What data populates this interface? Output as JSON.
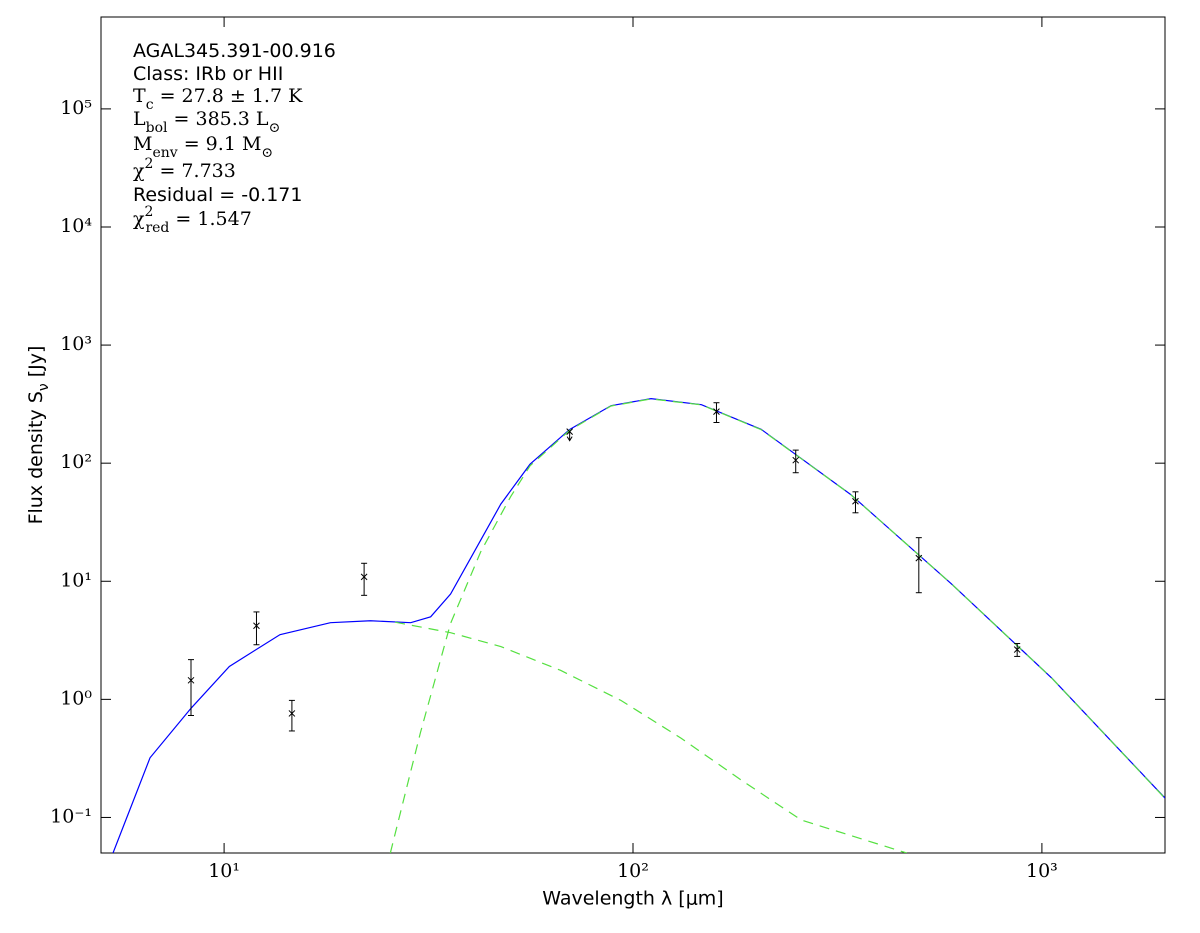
{
  "chart_data": {
    "type": "scatter",
    "xlabel": "Wavelength λ [μm]",
    "ylabel": [
      "Flux density S",
      {
        "sub": "ν"
      },
      " [Jy]"
    ],
    "xscale": "log",
    "yscale": "log",
    "xlim": [
      5,
      2000
    ],
    "ylim": [
      0.05,
      600000
    ],
    "xticks": [
      {
        "value": 10,
        "label": "10¹"
      },
      {
        "value": 100,
        "label": "10²"
      },
      {
        "value": 1000,
        "label": "10³"
      }
    ],
    "yticks": [
      {
        "value": 0.1,
        "label": "10⁻¹"
      },
      {
        "value": 1,
        "label": "10⁰"
      },
      {
        "value": 10,
        "label": "10¹"
      },
      {
        "value": 100,
        "label": "10²"
      },
      {
        "value": 1000,
        "label": "10³"
      },
      {
        "value": 10000,
        "label": "10⁴"
      },
      {
        "value": 100000,
        "label": "10⁵"
      }
    ],
    "annotations": [
      [
        "AGAL345.391-00.916"
      ],
      [
        "Class: IRb or HII"
      ],
      [
        "T",
        {
          "sub": "c"
        },
        " = 27.8 ± 1.7 K"
      ],
      [
        "L",
        {
          "sub": "bol"
        },
        " = 385.3 L",
        {
          "sub": "⊙"
        }
      ],
      [
        "M",
        {
          "sub": "env"
        },
        " = 9.1 M",
        {
          "sub": "⊙"
        }
      ],
      [
        "χ",
        {
          "sup": "2"
        },
        " = 7.733"
      ],
      [
        "Residual = -0.171"
      ],
      [
        "χ",
        {
          "sup": "2"
        },
        {
          "sub": "red"
        },
        " = 1.547"
      ]
    ],
    "points": {
      "x": [
        8.3,
        12,
        14.65,
        22,
        70,
        160,
        250,
        350,
        500,
        870
      ],
      "values": [
        1.45,
        4.2,
        0.76,
        10.9,
        185,
        273,
        106,
        47.6,
        15.7,
        2.64
      ],
      "errors": [
        0.72,
        1.3,
        0.22,
        3.3,
        null,
        52,
        23,
        9.6,
        7.7,
        0.33
      ],
      "upper_limit": [
        false,
        false,
        false,
        false,
        true,
        false,
        false,
        false,
        false,
        false
      ],
      "color": "#000000"
    },
    "lines": [
      {
        "x": [
          5.35,
          6.59,
          8.3,
          10.3,
          13.7,
          18.2,
          22.8,
          28.6,
          32,
          35.8,
          40,
          47.5,
          56,
          70,
          88.4,
          110.7,
          147,
          206,
          340,
          601,
          1060,
          2000
        ],
        "values": [
          0.05,
          0.32,
          0.84,
          1.9,
          3.53,
          4.46,
          4.63,
          4.46,
          5.0,
          7.8,
          15.5,
          45,
          98,
          193,
          307,
          352,
          313,
          193,
          54.6,
          9.5,
          1.5,
          0.146
        ],
        "color": "#0000ff",
        "dashed": false
      },
      {
        "x": [
          25.5,
          30.2,
          35.8,
          42.4,
          50.2,
          56,
          70,
          88.4,
          110.7,
          147,
          206,
          340,
          601,
          1060,
          2000
        ],
        "values": [
          0.05,
          0.52,
          4.4,
          17.7,
          52,
          95,
          190,
          305,
          350,
          312,
          192,
          54.5,
          9.5,
          1.5,
          0.145
        ],
        "color": "#55e040",
        "dashed": true
      },
      {
        "x": [
          26.2,
          35.8,
          47.5,
          66.5,
          93.4,
          131,
          184,
          258,
          467
        ],
        "values": [
          4.5,
          3.67,
          2.8,
          1.76,
          0.98,
          0.47,
          0.207,
          0.095,
          0.05
        ],
        "color": "#55e040",
        "dashed": true
      }
    ]
  }
}
